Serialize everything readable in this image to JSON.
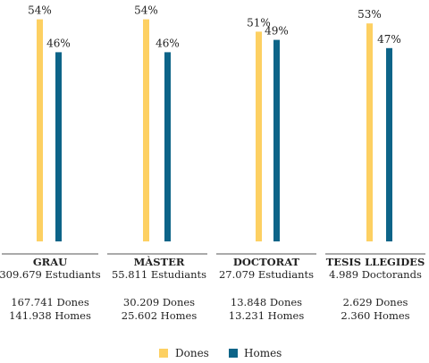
{
  "chart_data": {
    "type": "bar",
    "colors": {
      "dones": "#FDD062",
      "homes": "#0D6488",
      "axis": "#555555"
    },
    "ylim": [
      0,
      100
    ],
    "series": [
      {
        "name": "Dones",
        "values": [
          54,
          54,
          51,
          53
        ],
        "labels": [
          "54%",
          "54%",
          "51%",
          "53%"
        ]
      },
      {
        "name": "Homes",
        "values": [
          46,
          46,
          49,
          47
        ],
        "labels": [
          "46%",
          "46%",
          "49%",
          "47%"
        ]
      }
    ],
    "groups": [
      {
        "title": "GRAU",
        "total": "309.679 Estudiants",
        "dones": "167.741 Dones",
        "homes": "141.938 Homes"
      },
      {
        "title": "MÀSTER",
        "total": "55.811 Estudiants",
        "dones": "30.209 Dones",
        "homes": "25.602 Homes"
      },
      {
        "title": "DOCTORAT",
        "total": "27.079 Estudiants",
        "dones": "13.848 Dones",
        "homes": "13.231 Homes"
      },
      {
        "title": "TESIS LLEGIDES",
        "total": "4.989 Doctorands",
        "dones": "2.629 Dones",
        "homes": "2.360 Homes"
      }
    ],
    "legend": {
      "position": "bottom-center"
    }
  }
}
